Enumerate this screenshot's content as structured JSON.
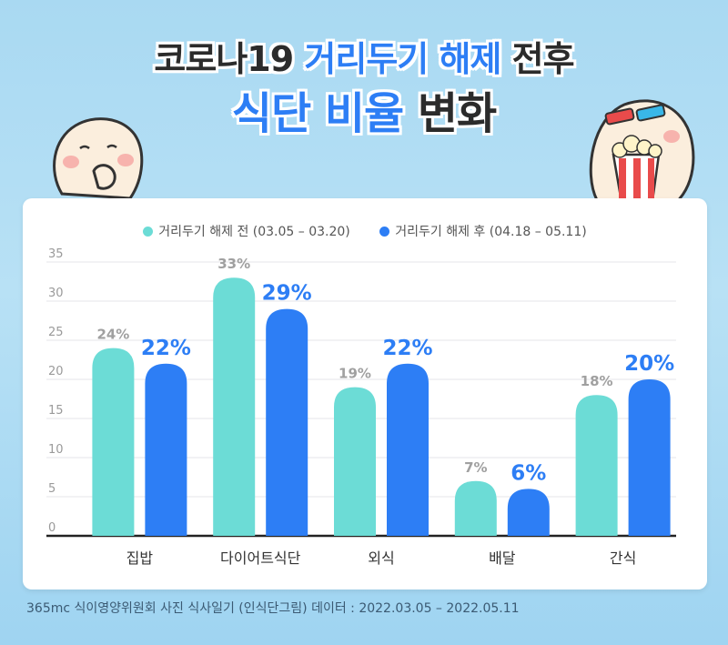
{
  "title": {
    "line1_prefix": "코로나19 ",
    "line1_highlight": "거리두기 해제",
    "line1_suffix": " 전후",
    "line2_highlight": "식단 비율",
    "line2_suffix": " 변화"
  },
  "footer": "365mc 식이영양위원회 사진 식사일기 (인식단그림) 데이터 : 2022.03.05 – 2022.05.11",
  "colors": {
    "before": "#6cdcd6",
    "after": "#2d7ef5",
    "accent": "#2d7ef5"
  },
  "chart_data": {
    "type": "bar",
    "categories": [
      "집밥",
      "다이어트식단",
      "외식",
      "배달",
      "간식"
    ],
    "series": [
      {
        "name": "거리두기 해제 전 (03.05 – 03.20)",
        "values": [
          24,
          33,
          19,
          7,
          18
        ],
        "labels": [
          "24%",
          "33%",
          "19%",
          "7%",
          "18%"
        ]
      },
      {
        "name": "거리두기 해제 후 (04.18 – 05.11)",
        "values": [
          22,
          29,
          22,
          6,
          20
        ],
        "labels": [
          "22%",
          "29%",
          "22%",
          "6%",
          "20%"
        ]
      }
    ],
    "yticks": [
      "0",
      "5",
      "10",
      "15",
      "20",
      "25",
      "30",
      "35"
    ],
    "ylim": [
      0,
      35
    ],
    "grid": true,
    "legend": "top-center"
  }
}
